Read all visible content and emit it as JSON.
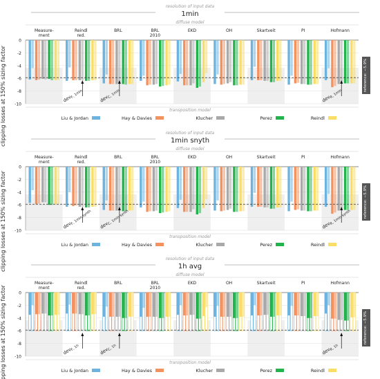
{
  "chart_data": {
    "type": "bar",
    "shared": {
      "super_caption": "resolution of input data",
      "diffuse_caption": "diffuse model",
      "transposition_caption": "transposition model",
      "ylabel": "clipping losses at 150% sizing factor",
      "ylim": [
        -10,
        0
      ],
      "yticks": [
        0,
        -2,
        -4,
        -6,
        -8,
        -10
      ],
      "reference_label": "reference: −5.9%",
      "reference_value": -5.9,
      "categories": [
        [
          "Measure-",
          "ment"
        ],
        [
          "Reindl",
          "red."
        ],
        [
          "BRL"
        ],
        [
          "BRL",
          "2010"
        ],
        [
          "EKD"
        ],
        [
          "OH"
        ],
        [
          "Skartveit"
        ],
        [
          "PI"
        ],
        [
          "Hofmann"
        ]
      ],
      "series": [
        {
          "name": "Liu & Jordan",
          "color": "#6CB4DF"
        },
        {
          "name": "Hay & Davies",
          "color": "#F4925F"
        },
        {
          "name": "Klucher",
          "color": "#A9A9A9"
        },
        {
          "name": "Perez",
          "color": "#22B34C"
        },
        {
          "name": "Reindl",
          "color": "#F9DD66"
        }
      ]
    },
    "panels": [
      {
        "title": "1min",
        "annotations": [
          {
            "label": "dev",
            "sub": "F, 1min",
            "category": 1
          },
          {
            "label": "dev",
            "sub": "C, 1min",
            "category": 2
          },
          {
            "label": "dev",
            "sub": "R, 1min",
            "category": 8
          }
        ],
        "values": [
          [
            [
              -6.2,
              -4.4
            ],
            [
              -6.3,
              -6.2
            ],
            [
              -6.1,
              -6.2
            ],
            [
              -6.1,
              -6.3
            ],
            [
              -6.3,
              -6.3
            ]
          ],
          [
            [
              -6.4,
              -4.3
            ],
            [
              -6.3,
              -6.3
            ],
            [
              -6.3,
              -6.3
            ],
            [
              -6.4,
              -6.4
            ],
            [
              -6.3,
              -6.3
            ]
          ],
          [
            [
              -6.8,
              -5.4
            ],
            [
              -6.9,
              -6.9
            ],
            [
              -6.9,
              -6.9
            ],
            [
              -6.9,
              -7.0
            ],
            [
              -6.9,
              -6.9
            ]
          ],
          [
            [
              -6.4,
              -5.6
            ],
            [
              -7.1,
              -7.0
            ],
            [
              -7.0,
              -6.9
            ],
            [
              -7.3,
              -7.2
            ],
            [
              -7.1,
              -7.0
            ]
          ],
          [
            [
              -6.5,
              -5.3
            ],
            [
              -7.1,
              -7.1
            ],
            [
              -7.1,
              -6.8
            ],
            [
              -7.5,
              -7.3
            ],
            [
              -6.6,
              -5.2
            ]
          ],
          [
            [
              -6.9,
              -5.4
            ],
            [
              -7.0,
              -6.9
            ],
            [
              -6.8,
              -6.6
            ],
            [
              -7.1,
              -7.1
            ],
            [
              -7.0,
              -7.0
            ]
          ],
          [
            [
              -6.3,
              -4.2
            ],
            [
              -6.3,
              -6.3
            ],
            [
              -6.4,
              -6.4
            ],
            [
              -6.6,
              -6.6
            ],
            [
              -6.4,
              -6.4
            ]
          ],
          [
            [
              -7.0,
              -5.6
            ],
            [
              -6.8,
              -6.7
            ],
            [
              -6.9,
              -6.9
            ],
            [
              -7.0,
              -7.0
            ],
            [
              -6.9,
              -6.9
            ]
          ],
          [
            [
              -6.3,
              -4.4
            ],
            [
              -7.4,
              -7.2
            ],
            [
              -6.9,
              -6.8
            ],
            [
              -6.8,
              -6.8
            ],
            [
              -6.8,
              -6.8
            ]
          ]
        ]
      },
      {
        "title": "1min snyth",
        "annotations": [
          {
            "label": "dev",
            "sub": "F, 1min synth",
            "category": 1
          },
          {
            "label": "dev",
            "sub": "C, 1min synth",
            "category": 2
          },
          {
            "label": "dev",
            "sub": "R, 1min synth",
            "category": 8
          }
        ],
        "values": [
          [
            [
              -5.7,
              -3.7
            ],
            [
              -5.9,
              -5.8
            ],
            [
              -5.6,
              -5.6
            ],
            [
              -6.0,
              -6.0
            ],
            [
              -5.9,
              -5.9
            ]
          ],
          [
            [
              -6.3,
              -4.0
            ],
            [
              -6.2,
              -6.1
            ],
            [
              -6.3,
              -6.3
            ],
            [
              -6.4,
              -6.4
            ],
            [
              -6.3,
              -6.3
            ]
          ],
          [
            [
              -6.8,
              -5.3
            ],
            [
              -6.9,
              -6.9
            ],
            [
              -6.9,
              -6.9
            ],
            [
              -7.0,
              -7.0
            ],
            [
              -6.9,
              -6.9
            ]
          ],
          [
            [
              -6.4,
              -5.5
            ],
            [
              -7.1,
              -7.0
            ],
            [
              -7.0,
              -6.9
            ],
            [
              -7.3,
              -7.2
            ],
            [
              -7.1,
              -7.0
            ]
          ],
          [
            [
              -6.5,
              -5.2
            ],
            [
              -7.1,
              -7.1
            ],
            [
              -7.1,
              -6.7
            ],
            [
              -7.5,
              -7.3
            ],
            [
              -6.5,
              -5.1
            ]
          ],
          [
            [
              -6.9,
              -5.3
            ],
            [
              -7.0,
              -6.9
            ],
            [
              -6.8,
              -6.6
            ],
            [
              -7.1,
              -7.1
            ],
            [
              -7.0,
              -7.0
            ]
          ],
          [
            [
              -6.3,
              -4.1
            ],
            [
              -6.3,
              -6.3
            ],
            [
              -6.4,
              -6.4
            ],
            [
              -6.6,
              -6.6
            ],
            [
              -6.4,
              -6.4
            ]
          ],
          [
            [
              -7.0,
              -5.5
            ],
            [
              -6.8,
              -6.7
            ],
            [
              -6.9,
              -6.9
            ],
            [
              -7.0,
              -7.0
            ],
            [
              -6.9,
              -6.9
            ]
          ],
          [
            [
              -6.3,
              -4.3
            ],
            [
              -7.4,
              -7.2
            ],
            [
              -6.9,
              -6.8
            ],
            [
              -6.8,
              -6.8
            ],
            [
              -6.8,
              -6.8
            ]
          ]
        ]
      },
      {
        "title": "1h avg",
        "annotations": [
          {
            "label": "dev",
            "sub": "F, 1h",
            "category": 1
          },
          {
            "label": "dev",
            "sub": "C, 1h",
            "category": 2
          },
          {
            "label": "dev",
            "sub": "R, 1h",
            "category": 8
          }
        ],
        "values": [
          [
            [
              -3.5,
              -2.0
            ],
            [
              -3.4,
              -3.4
            ],
            [
              -3.3,
              -3.3
            ],
            [
              -3.6,
              -3.6
            ],
            [
              -3.5,
              -3.5
            ]
          ],
          [
            [
              -3.3,
              -1.9
            ],
            [
              -3.3,
              -3.3
            ],
            [
              -3.4,
              -3.4
            ],
            [
              -3.6,
              -3.6
            ],
            [
              -3.4,
              -3.4
            ]
          ],
          [
            [
              -3.8,
              -2.2
            ],
            [
              -3.8,
              -3.8
            ],
            [
              -3.8,
              -3.8
            ],
            [
              -4.0,
              -4.0
            ],
            [
              -3.8,
              -3.8
            ]
          ],
          [
            [
              -3.8,
              -2.4
            ],
            [
              -3.8,
              -3.8
            ],
            [
              -3.8,
              -3.8
            ],
            [
              -4.0,
              -4.0
            ],
            [
              -3.8,
              -3.8
            ]
          ],
          [
            [
              -3.5,
              -2.0
            ],
            [
              -3.6,
              -3.6
            ],
            [
              -3.5,
              -3.5
            ],
            [
              -4.1,
              -4.1
            ],
            [
              -3.7,
              -2.3
            ]
          ],
          [
            [
              -3.8,
              -2.1
            ],
            [
              -3.8,
              -3.8
            ],
            [
              -3.8,
              -3.8
            ],
            [
              -4.0,
              -4.0
            ],
            [
              -3.8,
              -3.8
            ]
          ],
          [
            [
              -3.6,
              -2.0
            ],
            [
              -3.6,
              -3.6
            ],
            [
              -3.5,
              -3.5
            ],
            [
              -3.8,
              -3.8
            ],
            [
              -3.6,
              -3.6
            ]
          ],
          [
            [
              -3.6,
              -2.1
            ],
            [
              -3.6,
              -3.6
            ],
            [
              -3.7,
              -3.7
            ],
            [
              -4.0,
              -4.0
            ],
            [
              -3.7,
              -3.7
            ]
          ],
          [
            [
              -3.3,
              -2.0
            ],
            [
              -4.1,
              -4.1
            ],
            [
              -4.3,
              -4.3
            ],
            [
              -4.4,
              -4.4
            ],
            [
              -3.9,
              -3.9
            ]
          ]
        ]
      }
    ]
  }
}
